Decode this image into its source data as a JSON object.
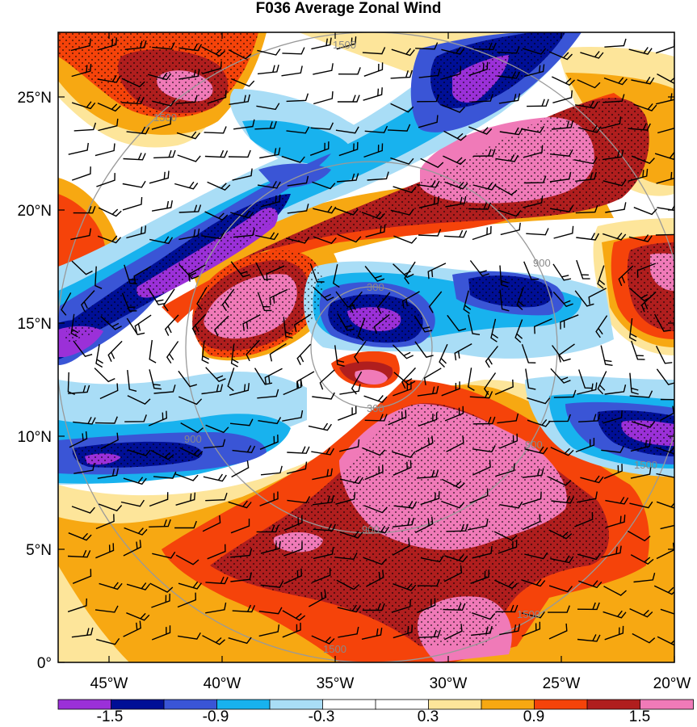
{
  "title": "F036 Average Zonal Wind",
  "map": {
    "lat_ticks": [
      "25°N",
      "20°N",
      "15°N",
      "10°N",
      "5°N",
      "0°"
    ],
    "lon_ticks": [
      "45°W",
      "40°W",
      "35°W",
      "30°W",
      "25°W",
      "20°W"
    ],
    "range_ring_labels": [
      "300",
      "300",
      "900",
      "900",
      "900",
      "900",
      "1500",
      "1500",
      "1500",
      "1500",
      "1500"
    ]
  },
  "colorbar": {
    "labels": [
      "-1.5",
      "-0.9",
      "-0.3",
      "0.3",
      "0.9",
      "1.5"
    ],
    "colors": [
      "#9b30d8",
      "#000f96",
      "#3a55d6",
      "#18b2ee",
      "#a9ddf6",
      "#ffffff",
      "#ffffff",
      "#fde59a",
      "#f7a812",
      "#f5430a",
      "#b01e1e",
      "#f07ab8"
    ]
  },
  "legend_colors": {
    "purple": "#9b30d8",
    "navy": "#000f96",
    "blue": "#3a55d6",
    "sky": "#18b2ee",
    "pale_blue": "#a9ddf6",
    "white": "#ffffff",
    "pale_yellow": "#fde59a",
    "orange": "#f7a812",
    "red_orange": "#f5430a",
    "dark_red": "#b01e1e",
    "pink": "#f07ab8"
  }
}
